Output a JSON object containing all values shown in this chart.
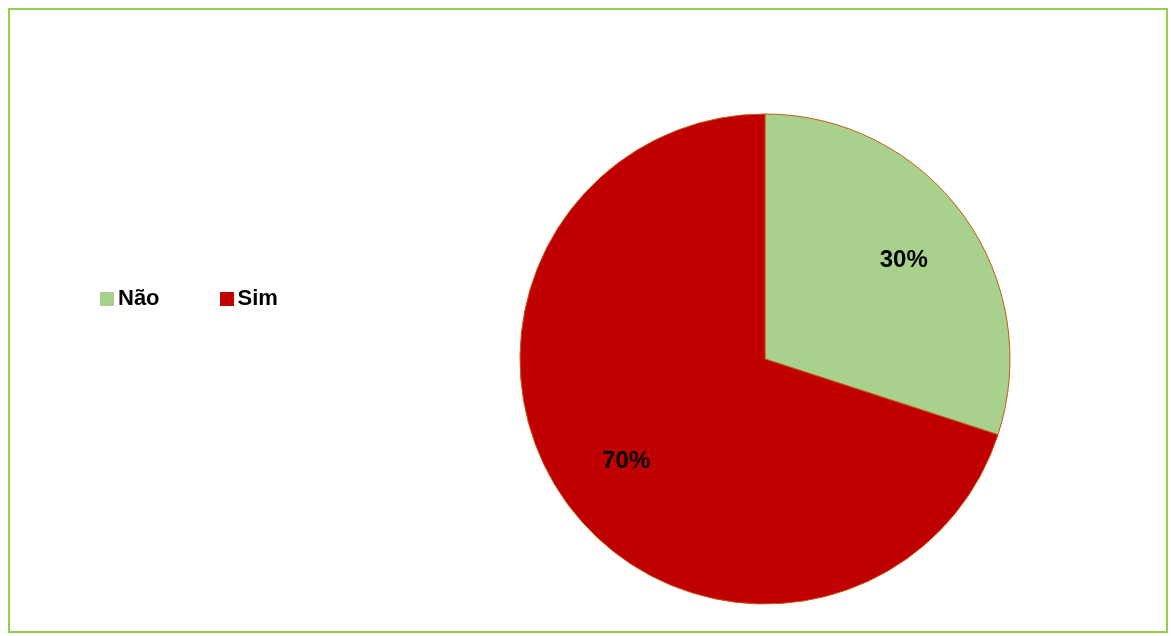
{
  "chart_data": {
    "type": "pie",
    "categories": [
      "Não",
      "Sim"
    ],
    "values": [
      30,
      70
    ],
    "colors": [
      "#a9d18e",
      "#c00000"
    ],
    "value_labels": [
      "30%",
      "70%"
    ],
    "legend": "left"
  }
}
